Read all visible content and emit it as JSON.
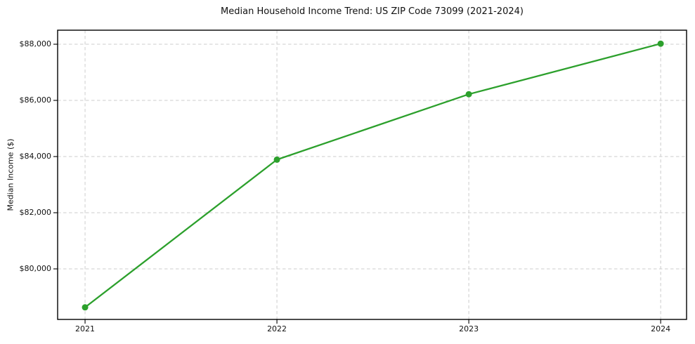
{
  "chart_data": {
    "type": "line",
    "title": "Median Household Income Trend: US ZIP Code 73099 (2021-2024)",
    "xlabel": "",
    "ylabel": "Median Income ($)",
    "x": [
      2021,
      2022,
      2023,
      2024
    ],
    "values": [
      78630,
      83890,
      86220,
      88020
    ],
    "x_tick_labels": [
      "2021",
      "2022",
      "2023",
      "2024"
    ],
    "y_ticks": [
      80000,
      82000,
      84000,
      86000,
      88000
    ],
    "y_tick_labels": [
      "$80,000",
      "$82,000",
      "$84,000",
      "$86,000",
      "$88,000"
    ],
    "xlim": [
      2020.857,
      2024.135
    ],
    "ylim": [
      78200,
      88500
    ],
    "grid": true,
    "grid_style": "dashed",
    "legend": false,
    "line_color": "#2ca02c",
    "marker_color": "#2ca02c",
    "marker": "circle",
    "marker_radius": 4.5,
    "background": "#ffffff"
  }
}
